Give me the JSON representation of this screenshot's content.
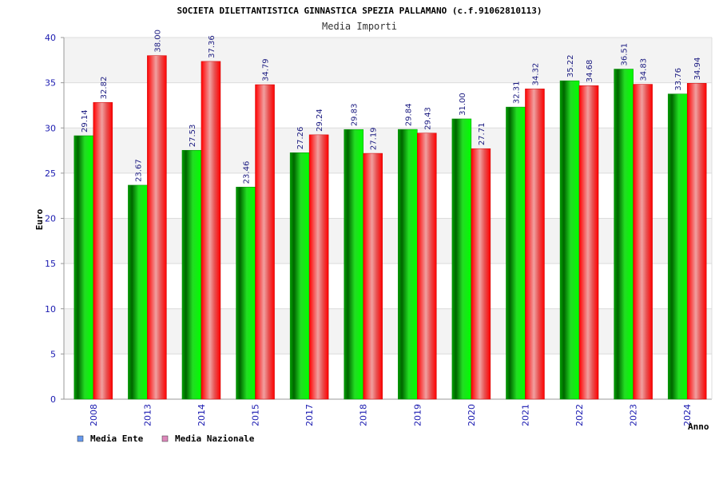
{
  "chart_data": {
    "type": "bar",
    "title": "SOCIETA DILETTANTISTICA GINNASTICA SPEZIA PALLAMANO (c.f.91062810113)",
    "subtitle": "Media Importi",
    "xlabel": "Anno",
    "ylabel": "Euro",
    "ylim": [
      0,
      40
    ],
    "yticks": [
      "0",
      "5",
      "10",
      "15",
      "20",
      "25",
      "30",
      "35",
      "40"
    ],
    "grid": true,
    "legend_position": "bottom-left",
    "categories": [
      "2008",
      "2013",
      "2014",
      "2015",
      "2017",
      "2018",
      "2019",
      "2020",
      "2021",
      "2022",
      "2023",
      "2024"
    ],
    "series": [
      {
        "name": "Media Ente",
        "color": "#00cc00",
        "legend_color": "#6699ee",
        "values": [
          29.14,
          23.67,
          27.53,
          23.46,
          27.26,
          29.83,
          29.84,
          31.0,
          32.31,
          35.22,
          36.51,
          33.76
        ],
        "labels": [
          "29.14",
          "23.67",
          "27.53",
          "23.46",
          "27.26",
          "29.83",
          "29.84",
          "31.00",
          "32.31",
          "35.22",
          "36.51",
          "33.76"
        ]
      },
      {
        "name": "Media Nazionale",
        "color": "#ee1111",
        "legend_color": "#dd88bb",
        "values": [
          32.82,
          38.0,
          37.36,
          34.79,
          29.24,
          27.19,
          29.43,
          27.71,
          34.32,
          34.68,
          34.83,
          34.94
        ],
        "labels": [
          "32.82",
          "38.00",
          "37.36",
          "34.79",
          "29.24",
          "27.19",
          "29.43",
          "27.71",
          "34.32",
          "34.68",
          "34.83",
          "34.94"
        ]
      }
    ]
  }
}
